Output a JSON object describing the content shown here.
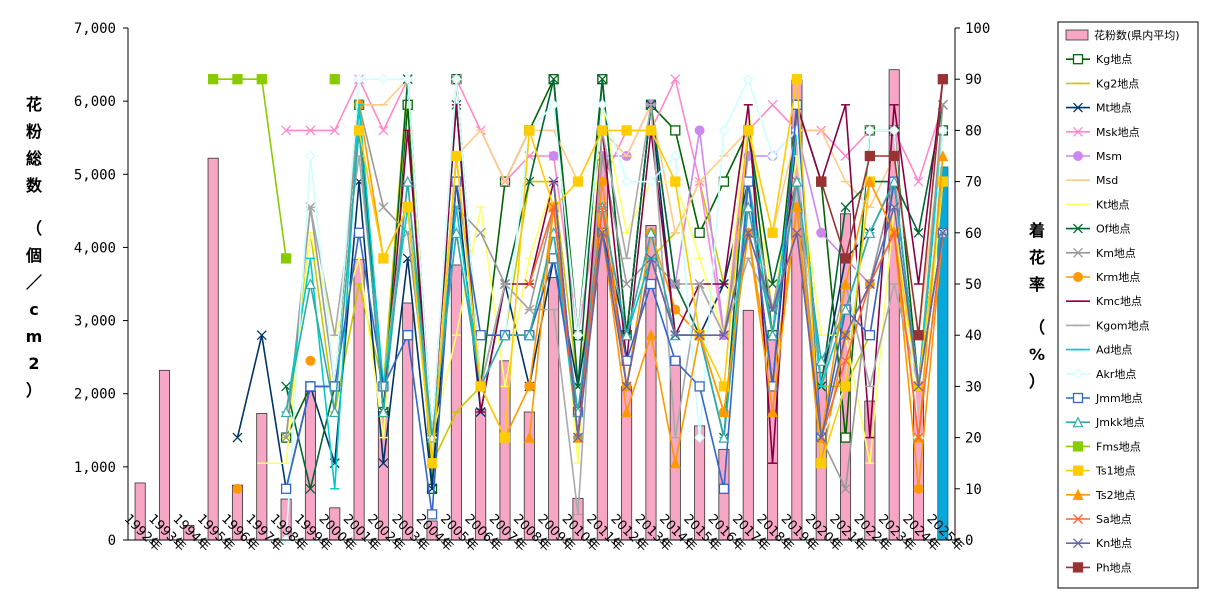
{
  "chart_data": {
    "type": "bar+line",
    "categories": [
      "1992年",
      "1993年",
      "1994年",
      "1995年",
      "1996年",
      "1997年",
      "1998年",
      "1999年",
      "2000年",
      "2001年",
      "2002年",
      "2003年",
      "2004年",
      "2005年",
      "2006年",
      "2007年",
      "2008年",
      "2009年",
      "2010年",
      "2011年",
      "2012年",
      "2013年",
      "2014年",
      "2015年",
      "2016年",
      "2017年",
      "2018年",
      "2019年",
      "2020年",
      "2021年",
      "2022年",
      "2023年",
      "2024年",
      "2025年"
    ],
    "y_left": {
      "label": "花粉総数 （個／cm2）",
      "ticks": [
        "0",
        "1,000",
        "2,000",
        "3,000",
        "4,000",
        "5,000",
        "6,000",
        "7,000"
      ],
      "range": [
        0,
        7000
      ]
    },
    "y_right": {
      "label": "着花率 （%）",
      "ticks": [
        "0",
        "10",
        "20",
        "30",
        "40",
        "50",
        "60",
        "70",
        "80",
        "90",
        "100"
      ],
      "range": [
        0,
        100
      ]
    },
    "bars": {
      "name": "花粉数(県内平均)",
      "values": [
        780,
        2320,
        200,
        5220,
        750,
        1730,
        560,
        2030,
        440,
        3840,
        1760,
        3240,
        260,
        3760,
        1790,
        2450,
        1750,
        3590,
        570,
        5200,
        2100,
        4300,
        2490,
        1560,
        1240,
        3140,
        2760,
        6290,
        2290,
        4460,
        1900,
        6430,
        2100,
        5100
      ],
      "highlight_last": true
    },
    "series": [
      {
        "name": "Kg地点",
        "color": "#006400",
        "marker": "square-open",
        "values": [
          null,
          null,
          null,
          null,
          null,
          null,
          20,
          30,
          30,
          85,
          25,
          85,
          10,
          90,
          30,
          70,
          80,
          90,
          40,
          90,
          40,
          85,
          80,
          60,
          70,
          80,
          40,
          85,
          70,
          20,
          80,
          80,
          30,
          80
        ]
      },
      {
        "name": "Kg2地点",
        "color": "#c8c800",
        "marker": "line",
        "values": [
          null,
          null,
          null,
          null,
          null,
          null,
          20,
          60,
          25,
          50,
          30,
          90,
          15,
          25,
          30,
          40,
          70,
          70,
          30,
          65,
          30,
          55,
          60,
          70,
          50,
          70,
          40,
          80,
          30,
          30,
          40,
          70,
          30,
          70
        ]
      },
      {
        "name": "Mt地点",
        "color": "#003366",
        "marker": "x",
        "values": [
          null,
          null,
          null,
          null,
          20,
          40,
          10,
          30,
          15,
          70,
          15,
          55,
          10,
          70,
          25,
          50,
          30,
          55,
          30,
          60,
          40,
          85,
          40,
          40,
          50,
          70,
          30,
          80,
          30,
          55,
          60,
          70,
          30,
          70
        ]
      },
      {
        "name": "Msk地点",
        "color": "#ff88cc",
        "marker": "x",
        "values": [
          null,
          null,
          null,
          null,
          null,
          null,
          80,
          80,
          80,
          90,
          80,
          90,
          20,
          90,
          80,
          70,
          75,
          75,
          40,
          70,
          80,
          80,
          90,
          70,
          40,
          80,
          85,
          80,
          80,
          75,
          80,
          80,
          70,
          85
        ]
      },
      {
        "name": "Msm",
        "color": "#cc88ee",
        "marker": "circle",
        "values": [
          null,
          null,
          null,
          null,
          null,
          null,
          null,
          null,
          null,
          null,
          null,
          null,
          null,
          null,
          null,
          null,
          null,
          75,
          null,
          75,
          75,
          85,
          50,
          80,
          40,
          75,
          75,
          80,
          60,
          55,
          50,
          70,
          30,
          70
        ]
      },
      {
        "name": "Msd",
        "color": "#ffcc88",
        "marker": "line",
        "values": [
          null,
          null,
          null,
          null,
          null,
          null,
          null,
          null,
          null,
          85,
          85,
          90,
          20,
          75,
          80,
          70,
          80,
          80,
          70,
          80,
          75,
          85,
          60,
          70,
          75,
          80,
          60,
          80,
          80,
          70,
          65,
          75,
          40,
          80
        ]
      },
      {
        "name": "Kt地点",
        "color": "#ffff66",
        "marker": "line",
        "values": [
          null,
          null,
          null,
          null,
          null,
          15,
          15,
          60,
          40,
          55,
          20,
          90,
          20,
          40,
          65,
          30,
          55,
          70,
          15,
          85,
          60,
          70,
          70,
          55,
          40,
          85,
          45,
          75,
          40,
          40,
          15,
          65,
          20,
          70
        ]
      },
      {
        "name": "Of地点",
        "color": "#006633",
        "marker": "x",
        "values": [
          null,
          null,
          null,
          null,
          null,
          null,
          30,
          10,
          30,
          85,
          25,
          90,
          20,
          85,
          30,
          50,
          70,
          90,
          30,
          90,
          40,
          85,
          50,
          40,
          20,
          80,
          50,
          70,
          30,
          65,
          70,
          70,
          60,
          85
        ]
      },
      {
        "name": "Km地点",
        "color": "#999999",
        "marker": "x",
        "values": [
          null,
          null,
          null,
          null,
          null,
          null,
          20,
          65,
          30,
          85,
          65,
          60,
          20,
          65,
          60,
          50,
          45,
          65,
          20,
          75,
          50,
          55,
          50,
          50,
          40,
          70,
          45,
          70,
          20,
          10,
          50,
          70,
          30,
          85
        ]
      },
      {
        "name": "Krm地点",
        "color": "#ff9900",
        "marker": "circle",
        "values": [
          null,
          null,
          null,
          null,
          10,
          null,
          null,
          35,
          null,
          85,
          55,
          65,
          15,
          75,
          30,
          20,
          30,
          65,
          20,
          70,
          30,
          60,
          45,
          40,
          25,
          60,
          30,
          65,
          15,
          40,
          50,
          60,
          10,
          60
        ]
      },
      {
        "name": "Kmc地点",
        "color": "#880044",
        "marker": "line",
        "values": [
          null,
          null,
          null,
          null,
          null,
          null,
          null,
          null,
          null,
          80,
          25,
          80,
          20,
          85,
          25,
          50,
          50,
          70,
          20,
          80,
          35,
          80,
          40,
          50,
          50,
          85,
          15,
          85,
          70,
          85,
          20,
          85,
          50,
          90
        ]
      },
      {
        "name": "Kgom地点",
        "color": "#aaaaaa",
        "marker": "line",
        "values": [
          null,
          null,
          null,
          null,
          null,
          null,
          null,
          65,
          40,
          75,
          30,
          70,
          20,
          60,
          30,
          50,
          45,
          45,
          5,
          80,
          55,
          85,
          20,
          50,
          40,
          55,
          45,
          70,
          30,
          50,
          30,
          50,
          30,
          60
        ]
      },
      {
        "name": "Ad地点",
        "color": "#00cccc",
        "marker": "line",
        "values": [
          null,
          null,
          null,
          null,
          null,
          null,
          25,
          55,
          10,
          85,
          30,
          65,
          20,
          65,
          30,
          40,
          40,
          60,
          20,
          65,
          40,
          55,
          40,
          40,
          20,
          70,
          40,
          80,
          30,
          45,
          60,
          70,
          30,
          80
        ]
      },
      {
        "name": "Akr地点",
        "color": "#ccffff",
        "marker": "diamond",
        "values": [
          null,
          null,
          null,
          null,
          null,
          null,
          0,
          75,
          30,
          90,
          90,
          90,
          20,
          90,
          30,
          40,
          80,
          85,
          40,
          85,
          70,
          70,
          75,
          20,
          80,
          90,
          75,
          80,
          20,
          30,
          80,
          80,
          20,
          80
        ]
      },
      {
        "name": "Jmm地点",
        "color": "#3366cc",
        "marker": "square-open",
        "values": [
          null,
          null,
          null,
          null,
          null,
          null,
          10,
          30,
          30,
          60,
          30,
          40,
          5,
          70,
          40,
          40,
          40,
          55,
          25,
          60,
          35,
          50,
          35,
          30,
          10,
          70,
          30,
          85,
          20,
          45,
          40,
          70,
          30,
          60
        ]
      },
      {
        "name": "Jmkk地点",
        "color": "#33aaaa",
        "marker": "triangle-open",
        "values": [
          null,
          null,
          null,
          null,
          null,
          null,
          25,
          50,
          25,
          80,
          25,
          70,
          20,
          60,
          30,
          40,
          40,
          60,
          25,
          65,
          40,
          60,
          40,
          40,
          20,
          65,
          40,
          70,
          35,
          45,
          60,
          70,
          30,
          60
        ]
      },
      {
        "name": "Fms地点",
        "color": "#88cc00",
        "marker": "square",
        "values": [
          null,
          null,
          null,
          90,
          90,
          90,
          55,
          null,
          90,
          null,
          null,
          null,
          null,
          null,
          null,
          null,
          null,
          null,
          null,
          null,
          null,
          null,
          null,
          null,
          null,
          null,
          null,
          null,
          null,
          null,
          null,
          null,
          null,
          null
        ]
      },
      {
        "name": "Ts1地点",
        "color": "#ffcc00",
        "marker": "square",
        "values": [
          null,
          null,
          null,
          null,
          null,
          null,
          null,
          null,
          null,
          80,
          55,
          65,
          15,
          75,
          30,
          20,
          80,
          65,
          70,
          80,
          80,
          80,
          70,
          40,
          30,
          80,
          60,
          90,
          15,
          30,
          70,
          60,
          30,
          70
        ]
      },
      {
        "name": "Ts2地点",
        "color": "#ff9900",
        "marker": "triangle",
        "values": [
          null,
          null,
          null,
          null,
          null,
          null,
          null,
          null,
          null,
          null,
          null,
          null,
          null,
          null,
          null,
          null,
          20,
          65,
          20,
          60,
          25,
          40,
          15,
          40,
          25,
          60,
          25,
          65,
          20,
          50,
          70,
          60,
          20,
          75
        ]
      },
      {
        "name": "Sa地点",
        "color": "#ff6633",
        "marker": "x",
        "values": [
          null,
          null,
          null,
          null,
          null,
          null,
          null,
          null,
          null,
          null,
          null,
          null,
          null,
          null,
          null,
          null,
          50,
          65,
          20,
          65,
          30,
          55,
          40,
          40,
          40,
          60,
          45,
          60,
          20,
          35,
          50,
          60,
          20,
          60
        ]
      },
      {
        "name": "Kn地点",
        "color": "#6666aa",
        "marker": "x",
        "values": [
          null,
          null,
          null,
          null,
          null,
          null,
          null,
          null,
          null,
          null,
          null,
          null,
          null,
          null,
          null,
          null,
          null,
          70,
          20,
          60,
          30,
          55,
          40,
          40,
          40,
          60,
          45,
          60,
          20,
          40,
          50,
          65,
          30,
          60
        ]
      },
      {
        "name": "Ph地点",
        "color": "#993333",
        "marker": "square",
        "values": [
          null,
          null,
          null,
          null,
          null,
          null,
          null,
          null,
          null,
          null,
          null,
          null,
          null,
          null,
          null,
          null,
          null,
          null,
          null,
          null,
          null,
          null,
          null,
          null,
          null,
          null,
          null,
          null,
          70,
          55,
          75,
          75,
          40,
          90
        ]
      }
    ],
    "legend_placement": "right"
  }
}
